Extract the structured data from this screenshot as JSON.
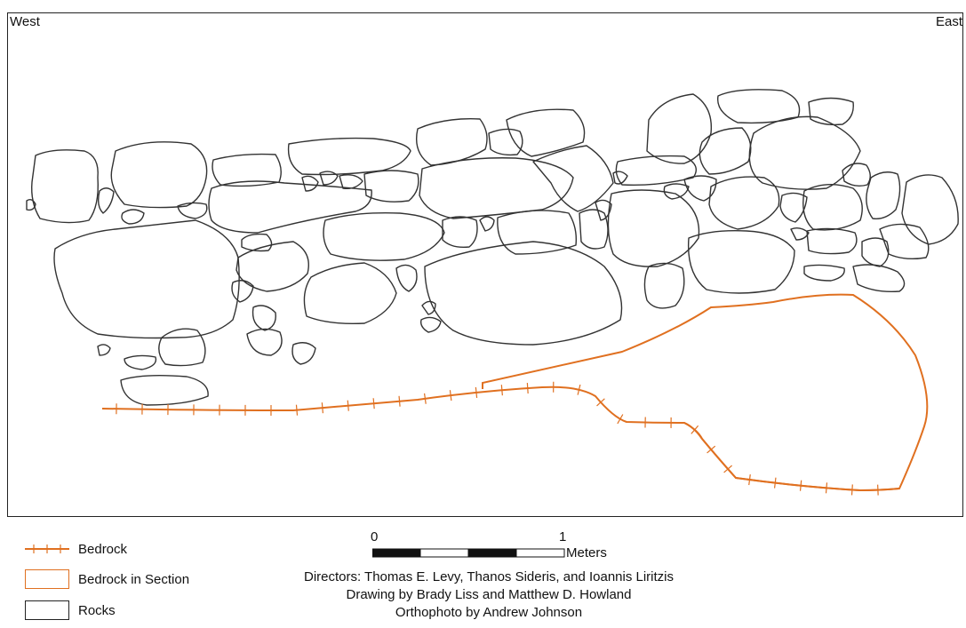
{
  "orientation": {
    "west": "West",
    "east": "East"
  },
  "legend": [
    {
      "label": "Bedrock",
      "symbol": "ticked-line",
      "color": "#e07020"
    },
    {
      "label": "Bedrock in Section",
      "symbol": "outline-box",
      "color": "#e07020"
    },
    {
      "label": "Rocks",
      "symbol": "outline-box",
      "color": "#222222"
    }
  ],
  "scale_bar": {
    "start": "0",
    "end": "1",
    "unit": "Meters"
  },
  "credits": [
    "Directors: Thomas E. Levy, Thanos Sideris, and Ioannis Liritzis",
    "Drawing by Brady Liss and Matthew D. Howland",
    "Orthophoto by Andrew Johnson"
  ],
  "colors": {
    "bedrock": "#e07020",
    "rock_outline": "#333333",
    "frame": "#222222"
  }
}
